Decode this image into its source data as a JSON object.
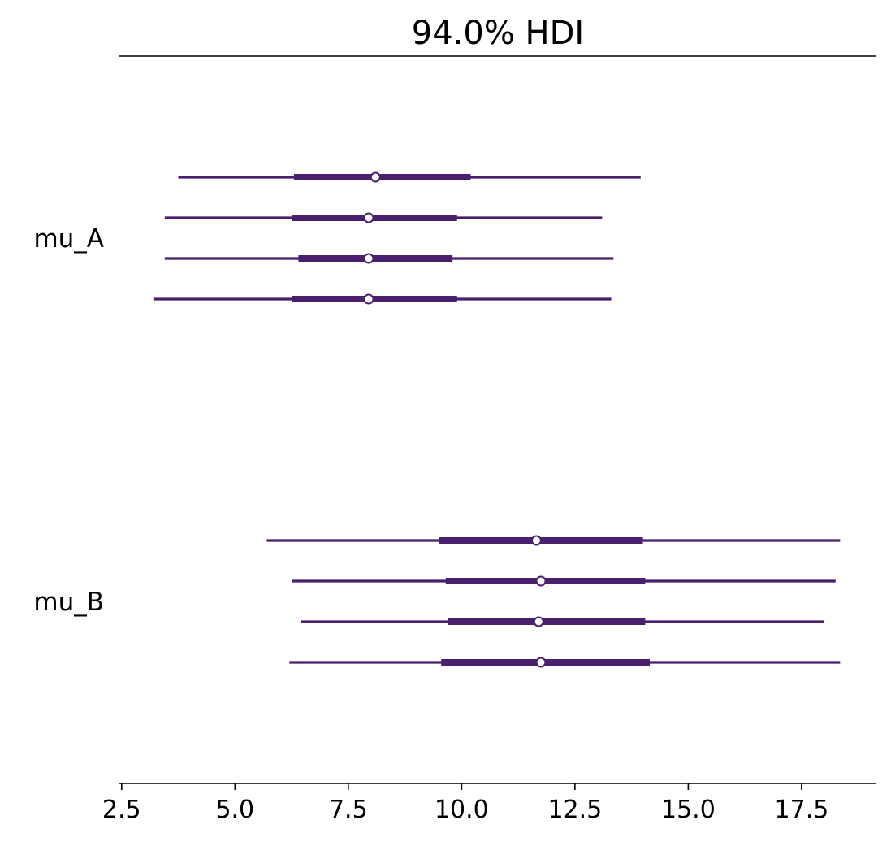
{
  "chart_data": {
    "type": "forest",
    "title": "94.0% HDI",
    "xlabel": "",
    "ylabel": "",
    "xlim": [
      2.45,
      19.15
    ],
    "xticks": [
      2.5,
      5.0,
      7.5,
      10.0,
      12.5,
      15.0,
      17.5
    ],
    "xtick_labels": [
      "2.5",
      "5.0",
      "7.5",
      "10.0",
      "12.5",
      "15.0",
      "17.5"
    ],
    "color": "#4a1f6e",
    "grid": false,
    "legend": "none",
    "variables": [
      {
        "name": "mu_A",
        "chains": [
          {
            "hdi_low": 3.75,
            "hdi_high": 13.95,
            "iqr_low": 6.3,
            "iqr_high": 10.2,
            "median": 8.1
          },
          {
            "hdi_low": 3.45,
            "hdi_high": 13.1,
            "iqr_low": 6.25,
            "iqr_high": 9.9,
            "median": 7.95
          },
          {
            "hdi_low": 3.45,
            "hdi_high": 13.35,
            "iqr_low": 6.4,
            "iqr_high": 9.8,
            "median": 7.95
          },
          {
            "hdi_low": 3.2,
            "hdi_high": 13.3,
            "iqr_low": 6.25,
            "iqr_high": 9.9,
            "median": 7.95
          }
        ]
      },
      {
        "name": "mu_B",
        "chains": [
          {
            "hdi_low": 5.7,
            "hdi_high": 18.35,
            "iqr_low": 9.5,
            "iqr_high": 14.0,
            "median": 11.65
          },
          {
            "hdi_low": 6.25,
            "hdi_high": 18.25,
            "iqr_low": 9.65,
            "iqr_high": 14.05,
            "median": 11.75
          },
          {
            "hdi_low": 6.45,
            "hdi_high": 18.0,
            "iqr_low": 9.7,
            "iqr_high": 14.05,
            "median": 11.7
          },
          {
            "hdi_low": 6.2,
            "hdi_high": 18.35,
            "iqr_low": 9.55,
            "iqr_high": 14.15,
            "median": 11.75
          }
        ]
      }
    ]
  }
}
